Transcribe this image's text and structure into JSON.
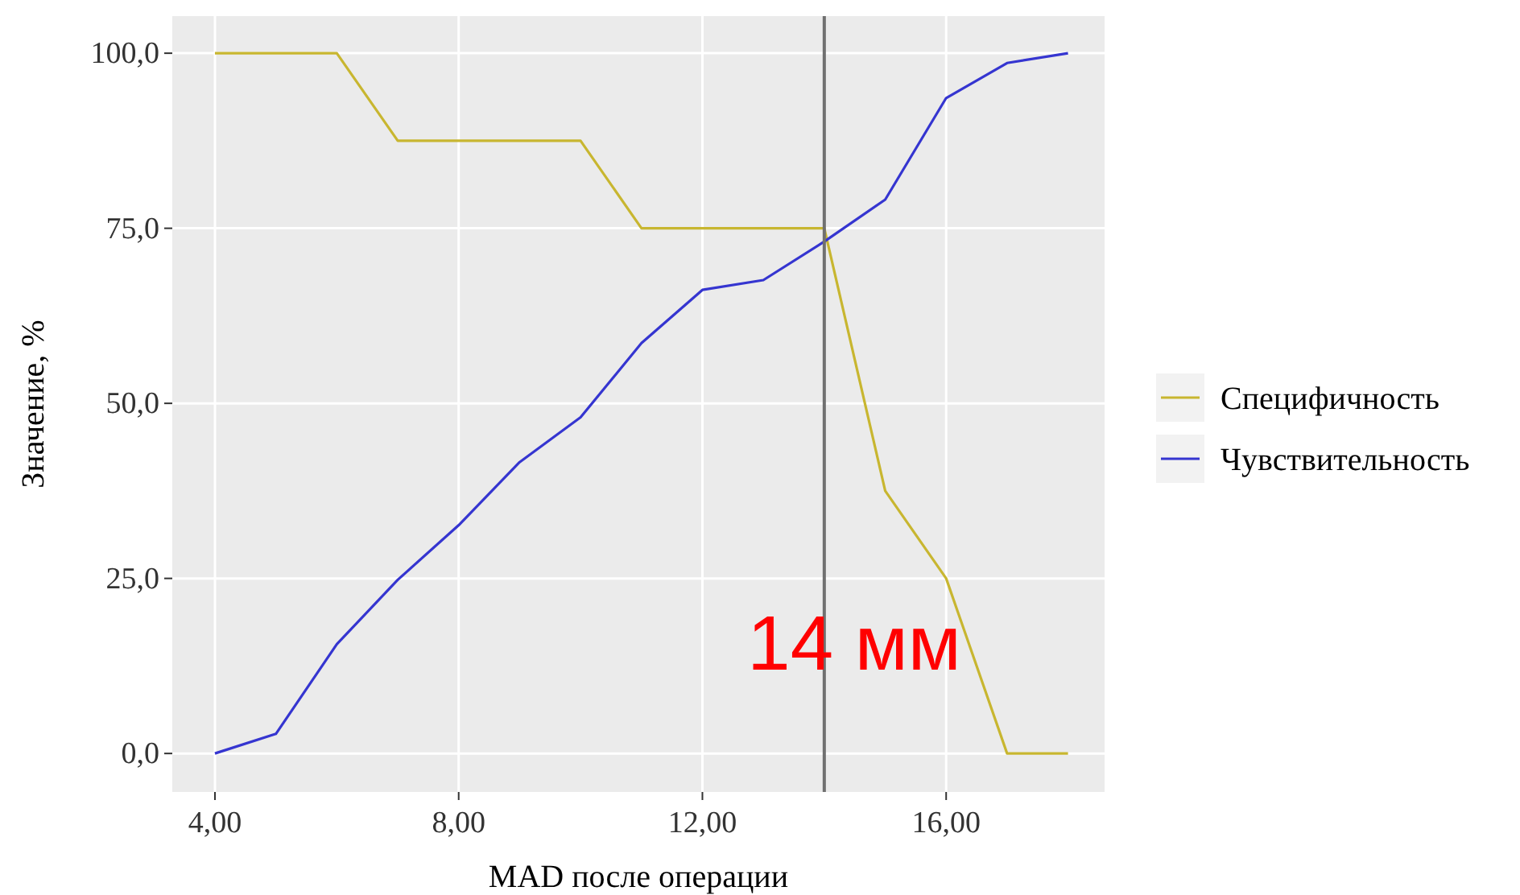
{
  "chart_data": {
    "type": "line",
    "xlabel": "MAD после операции",
    "ylabel": "Значение, %",
    "x": [
      4,
      5,
      6,
      7,
      8,
      9,
      10,
      11,
      12,
      13,
      14,
      15,
      16,
      17,
      18
    ],
    "series": [
      {
        "name": "Специфичность",
        "color": "#c8b630",
        "values": [
          100,
          100,
          100,
          87.5,
          87.5,
          87.5,
          87.5,
          75,
          75,
          75,
          75,
          37.5,
          25,
          0,
          0
        ]
      },
      {
        "name": "Чувствительность",
        "color": "#3535d0",
        "values": [
          0,
          2.8,
          15.6,
          24.8,
          32.6,
          41.6,
          48,
          58.6,
          66.2,
          67.6,
          73.1,
          79.1,
          93.6,
          98.6,
          100
        ]
      }
    ],
    "xlim": [
      3.3,
      18.6
    ],
    "ylim": [
      -5.5,
      105.3
    ],
    "xticks": [
      {
        "value": 4,
        "label": "4,00"
      },
      {
        "value": 8,
        "label": "8,00"
      },
      {
        "value": 12,
        "label": "12,00"
      },
      {
        "value": 16,
        "label": "16,00"
      }
    ],
    "yticks": [
      {
        "value": 0,
        "label": "0,0"
      },
      {
        "value": 25,
        "label": "25,0"
      },
      {
        "value": 50,
        "label": "50,0"
      },
      {
        "value": 75,
        "label": "75,0"
      },
      {
        "value": 100,
        "label": "100,0"
      }
    ],
    "ref_lines": [
      {
        "axis": "x",
        "value": 14,
        "label": "14 мм",
        "color": "#707070"
      }
    ],
    "grid": true,
    "legend": "right",
    "marker": "none",
    "line_style": "solid"
  }
}
